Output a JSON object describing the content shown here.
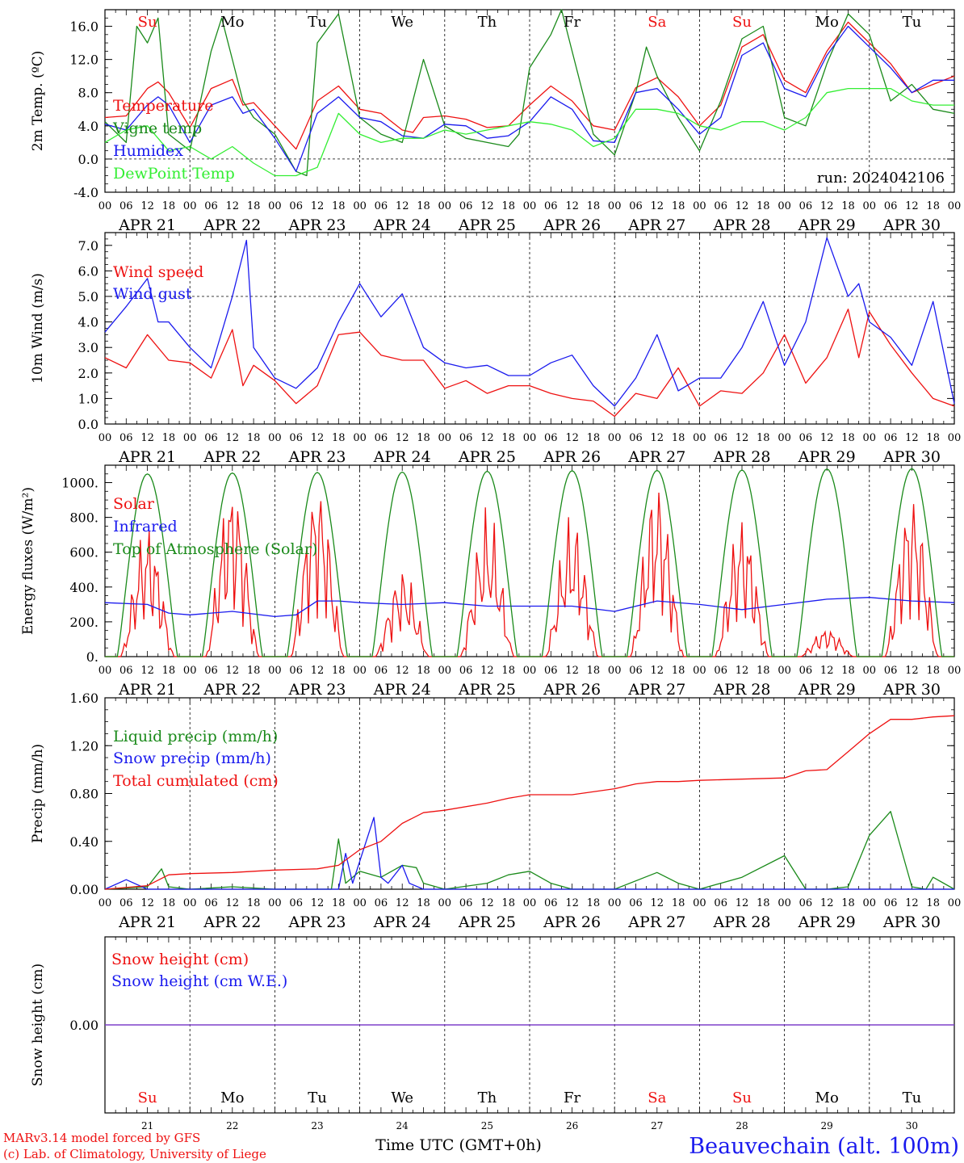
{
  "days": {
    "dates": [
      "APR 21",
      "APR 22",
      "APR 23",
      "APR 24",
      "APR 25",
      "APR 26",
      "APR 27",
      "APR 28",
      "APR 29",
      "APR 30"
    ],
    "weekdays": [
      "Su",
      "Mo",
      "Tu",
      "We",
      "Th",
      "Fr",
      "Sa",
      "Su",
      "Mo",
      "Tu"
    ],
    "day_numbers": [
      "21",
      "22",
      "23",
      "24",
      "25",
      "26",
      "27",
      "28",
      "29",
      "30"
    ],
    "weekend_flags": [
      true,
      false,
      false,
      false,
      false,
      false,
      true,
      true,
      false,
      false
    ],
    "hour_ticks": [
      "00",
      "06",
      "12",
      "18"
    ],
    "last_tick": "00"
  },
  "colors": {
    "red": "#ee1111",
    "green": "#1a8a1a",
    "blue": "#1a1aee",
    "light_green": "#33ee33",
    "purple": "#7a3ac8"
  },
  "footer": {
    "model": "MARv3.14 model forced by GFS",
    "lab": "(c) Lab. of Climatology, University of Liege",
    "xlabel": "Time UTC (GMT+0h)",
    "station": "Beauvechain (alt. 100m)"
  },
  "chart_data": [
    {
      "id": "temperature",
      "type": "line",
      "ylabel": "2m Temp. (ºC)",
      "ylim": [
        -4,
        18
      ],
      "yticks": [
        "-4.0",
        "0.0",
        "4.0",
        "8.0",
        "12.0",
        "16.0"
      ],
      "ref_line": 0,
      "annotation": "run: 2024042106",
      "x_unit": "hours since APR 21 00 UTC",
      "series": [
        {
          "name": "Temperature",
          "color": "red",
          "x": [
            0,
            6,
            12,
            15,
            18,
            24,
            30,
            36,
            39,
            42,
            48,
            54,
            60,
            66,
            72,
            78,
            84,
            87,
            90,
            96,
            102,
            108,
            114,
            120,
            126,
            132,
            138,
            144,
            150,
            156,
            162,
            168,
            174,
            180,
            186,
            192,
            198,
            204,
            210,
            216,
            222,
            228,
            234,
            240
          ],
          "y": [
            5.0,
            5.2,
            8.5,
            9.3,
            8.0,
            3.8,
            8.5,
            9.6,
            6.5,
            6.8,
            4.0,
            1.2,
            7.0,
            8.8,
            6.0,
            5.5,
            3.5,
            3.2,
            5.0,
            5.2,
            4.8,
            3.8,
            4.0,
            6.5,
            8.8,
            7.0,
            4.0,
            3.5,
            8.6,
            9.8,
            7.5,
            4.0,
            6.5,
            13.5,
            15.0,
            9.5,
            8.0,
            13.0,
            16.5,
            14.0,
            11.5,
            8.0,
            9.0,
            10.0
          ]
        },
        {
          "name": "Vigne temp",
          "color": "green",
          "x": [
            0,
            6,
            9,
            12,
            15,
            18,
            21,
            24,
            30,
            33,
            36,
            39,
            42,
            48,
            54,
            57,
            60,
            66,
            72,
            78,
            84,
            90,
            96,
            102,
            108,
            114,
            117,
            120,
            126,
            129,
            132,
            138,
            144,
            150,
            153,
            156,
            162,
            168,
            174,
            180,
            186,
            192,
            198,
            204,
            210,
            216,
            222,
            228,
            234,
            240
          ],
          "y": [
            4.5,
            2.0,
            16.0,
            14.0,
            17.0,
            3.0,
            2.0,
            1.0,
            13.0,
            17.0,
            12.0,
            7.0,
            5.0,
            3.0,
            -1.5,
            -2.0,
            14.0,
            17.5,
            5.0,
            3.0,
            2.0,
            12.0,
            4.0,
            2.5,
            2.0,
            1.5,
            3.0,
            11.0,
            15.0,
            18.0,
            13.0,
            3.0,
            0.5,
            8.0,
            13.5,
            10.0,
            5.0,
            1.0,
            7.0,
            14.5,
            16.0,
            5.0,
            4.0,
            11.5,
            17.5,
            15.0,
            7.0,
            9.0,
            6.0,
            5.5
          ]
        },
        {
          "name": "Humidex",
          "color": "blue",
          "x": [
            0,
            6,
            12,
            15,
            18,
            24,
            30,
            36,
            39,
            42,
            48,
            54,
            60,
            66,
            72,
            78,
            84,
            90,
            96,
            102,
            108,
            114,
            120,
            126,
            132,
            138,
            144,
            150,
            156,
            162,
            168,
            174,
            180,
            186,
            192,
            198,
            204,
            210,
            216,
            222,
            228,
            234,
            240
          ],
          "y": [
            4.2,
            3.5,
            6.5,
            7.5,
            6.5,
            2.0,
            6.5,
            7.5,
            5.5,
            6.0,
            2.5,
            -1.5,
            5.5,
            7.5,
            5.0,
            4.5,
            2.8,
            2.5,
            4.2,
            4.0,
            2.5,
            2.8,
            4.5,
            7.5,
            6.0,
            2.2,
            2.0,
            8.0,
            8.5,
            6.0,
            3.0,
            5.0,
            12.5,
            14.0,
            8.5,
            7.5,
            12.5,
            16.0,
            13.5,
            11.0,
            8.0,
            9.5,
            9.5
          ]
        },
        {
          "name": "DewPoint Temp",
          "color": "light_green",
          "x": [
            0,
            6,
            12,
            18,
            24,
            30,
            36,
            42,
            48,
            54,
            60,
            66,
            72,
            78,
            84,
            90,
            96,
            102,
            108,
            114,
            120,
            126,
            132,
            138,
            144,
            150,
            156,
            162,
            168,
            174,
            180,
            186,
            192,
            198,
            204,
            210,
            216,
            222,
            228,
            234,
            240
          ],
          "y": [
            2.0,
            3.5,
            4.0,
            1.0,
            1.5,
            0.0,
            1.5,
            -0.5,
            -2.0,
            -2.0,
            -1.0,
            5.5,
            3.0,
            2.0,
            2.5,
            2.5,
            3.5,
            3.0,
            3.5,
            4.0,
            4.5,
            4.2,
            3.5,
            1.5,
            2.5,
            6.0,
            6.0,
            5.5,
            4.0,
            3.5,
            4.5,
            4.5,
            3.5,
            5.0,
            8.0,
            8.5,
            8.5,
            8.5,
            7.0,
            6.5,
            6.5
          ]
        }
      ]
    },
    {
      "id": "wind",
      "type": "line",
      "ylabel": "10m Wind (m/s)",
      "ylim": [
        0,
        7.5
      ],
      "yticks": [
        "0.0",
        "1.0",
        "2.0",
        "3.0",
        "4.0",
        "5.0",
        "6.0",
        "7.0"
      ],
      "ref_line": 5,
      "x_unit": "hours since APR 21 00 UTC",
      "series": [
        {
          "name": "Wind speed",
          "color": "red",
          "x": [
            0,
            6,
            12,
            18,
            24,
            30,
            36,
            39,
            42,
            48,
            54,
            60,
            66,
            72,
            78,
            84,
            90,
            96,
            102,
            108,
            114,
            120,
            126,
            132,
            138,
            144,
            150,
            156,
            162,
            168,
            174,
            180,
            186,
            192,
            198,
            204,
            210,
            213,
            216,
            222,
            228,
            234,
            240
          ],
          "y": [
            2.6,
            2.2,
            3.5,
            2.5,
            2.4,
            1.8,
            3.7,
            1.5,
            2.3,
            1.7,
            0.8,
            1.5,
            3.5,
            3.6,
            2.7,
            2.5,
            2.5,
            1.4,
            1.7,
            1.2,
            1.5,
            1.5,
            1.2,
            1.0,
            0.9,
            0.3,
            1.2,
            1.0,
            2.2,
            0.7,
            1.3,
            1.2,
            2.0,
            3.5,
            1.6,
            2.6,
            4.5,
            2.6,
            4.4,
            3.1,
            2.0,
            1.0,
            0.7
          ]
        },
        {
          "name": "Wind gust",
          "color": "blue",
          "x": [
            0,
            6,
            12,
            15,
            18,
            24,
            30,
            36,
            40,
            42,
            48,
            54,
            60,
            66,
            72,
            78,
            84,
            90,
            96,
            102,
            108,
            114,
            120,
            126,
            132,
            138,
            144,
            150,
            156,
            162,
            168,
            174,
            180,
            186,
            192,
            198,
            204,
            210,
            213,
            216,
            222,
            228,
            234,
            240
          ],
          "y": [
            3.6,
            4.6,
            5.7,
            4.0,
            4.0,
            3.0,
            2.2,
            5.0,
            7.2,
            3.0,
            1.8,
            1.4,
            2.2,
            4.0,
            5.5,
            4.2,
            5.1,
            3.0,
            2.4,
            2.2,
            2.3,
            1.9,
            1.9,
            2.4,
            2.7,
            1.5,
            0.7,
            1.8,
            3.5,
            1.3,
            1.8,
            1.8,
            3.0,
            4.8,
            2.3,
            4.0,
            7.3,
            5.0,
            5.5,
            4.0,
            3.4,
            2.3,
            4.8,
            0.8
          ]
        }
      ]
    },
    {
      "id": "energy",
      "type": "line",
      "ylabel": "Energy fluxes (W/m²)",
      "ylim": [
        0,
        1100
      ],
      "yticks": [
        "0.",
        "200.",
        "400.",
        "600.",
        "800.",
        "1000."
      ],
      "x_unit": "hours since APR 21 00 UTC",
      "series": [
        {
          "name": "Solar",
          "color": "red",
          "daily_peaks": [
            600,
            810,
            820,
            400,
            650,
            630,
            800,
            640,
            130,
            760
          ]
        },
        {
          "name": "Infrared",
          "color": "blue",
          "x": [
            0,
            12,
            18,
            24,
            36,
            48,
            54,
            60,
            66,
            72,
            84,
            96,
            108,
            120,
            132,
            144,
            156,
            168,
            180,
            192,
            204,
            216,
            228,
            240
          ],
          "y": [
            310,
            300,
            250,
            240,
            260,
            230,
            240,
            320,
            320,
            310,
            300,
            310,
            290,
            290,
            290,
            260,
            320,
            300,
            270,
            300,
            330,
            340,
            320,
            310
          ]
        },
        {
          "name": "Top of Atmosphere (Solar)",
          "color": "green",
          "daily_peaks": [
            1050,
            1055,
            1058,
            1060,
            1065,
            1068,
            1070,
            1072,
            1078,
            1080
          ]
        }
      ]
    },
    {
      "id": "precip",
      "type": "line",
      "ylabel": "Precip (mm/h)",
      "ylim": [
        0,
        1.6
      ],
      "yticks": [
        "0.00",
        "0.40",
        "0.80",
        "1.20",
        "1.60"
      ],
      "x_unit": "hours since APR 21 00 UTC",
      "series": [
        {
          "name": "Liquid precip (mm/h)",
          "color": "green",
          "x": [
            0,
            12,
            16,
            18,
            24,
            36,
            48,
            60,
            64,
            66,
            68,
            72,
            78,
            84,
            88,
            90,
            96,
            108,
            114,
            120,
            126,
            132,
            144,
            156,
            162,
            168,
            180,
            192,
            198,
            204,
            210,
            216,
            222,
            228,
            232,
            234,
            240
          ],
          "y": [
            0,
            0.02,
            0.17,
            0.02,
            0,
            0.02,
            0,
            0,
            0,
            0.42,
            0.05,
            0.15,
            0.1,
            0.2,
            0.18,
            0.05,
            0,
            0.05,
            0.12,
            0.15,
            0.05,
            0,
            0,
            0.14,
            0.05,
            0,
            0.1,
            0.28,
            0,
            0,
            0.02,
            0.45,
            0.65,
            0.02,
            0,
            0.1,
            0
          ]
        },
        {
          "name": "Snow precip (mm/h)",
          "color": "blue",
          "x": [
            0,
            6,
            12,
            24,
            48,
            66,
            68,
            70,
            76,
            78,
            80,
            84,
            86,
            90,
            96,
            108,
            120,
            240
          ],
          "y": [
            0,
            0.08,
            0,
            0,
            0,
            0,
            0.3,
            0.05,
            0.6,
            0.1,
            0.05,
            0.2,
            0.05,
            0,
            0,
            0,
            0,
            0
          ]
        },
        {
          "name": "Total cumulated (cm)",
          "color": "red",
          "x": [
            0,
            12,
            18,
            24,
            36,
            48,
            60,
            66,
            72,
            78,
            84,
            90,
            96,
            108,
            114,
            120,
            132,
            144,
            150,
            156,
            162,
            168,
            180,
            192,
            198,
            204,
            210,
            216,
            222,
            228,
            234,
            240
          ],
          "y": [
            0,
            0.03,
            0.12,
            0.13,
            0.14,
            0.16,
            0.17,
            0.2,
            0.33,
            0.4,
            0.55,
            0.64,
            0.66,
            0.72,
            0.76,
            0.79,
            0.79,
            0.84,
            0.88,
            0.9,
            0.9,
            0.91,
            0.92,
            0.93,
            0.99,
            1.0,
            1.15,
            1.3,
            1.42,
            1.42,
            1.44,
            1.45
          ]
        }
      ]
    },
    {
      "id": "snow",
      "type": "line",
      "ylabel": "Snow height (cm)",
      "ylim": [
        -1,
        1
      ],
      "yticks": [
        "0.00"
      ],
      "x_unit": "hours since APR 21 00 UTC",
      "series": [
        {
          "name": "Snow height (cm)",
          "color": "red",
          "x": [
            0,
            240
          ],
          "y": [
            0,
            0
          ]
        },
        {
          "name": "Snow height (cm W.E.)",
          "color": "blue",
          "x": [
            0,
            240
          ],
          "y": [
            0,
            0
          ]
        }
      ]
    }
  ]
}
